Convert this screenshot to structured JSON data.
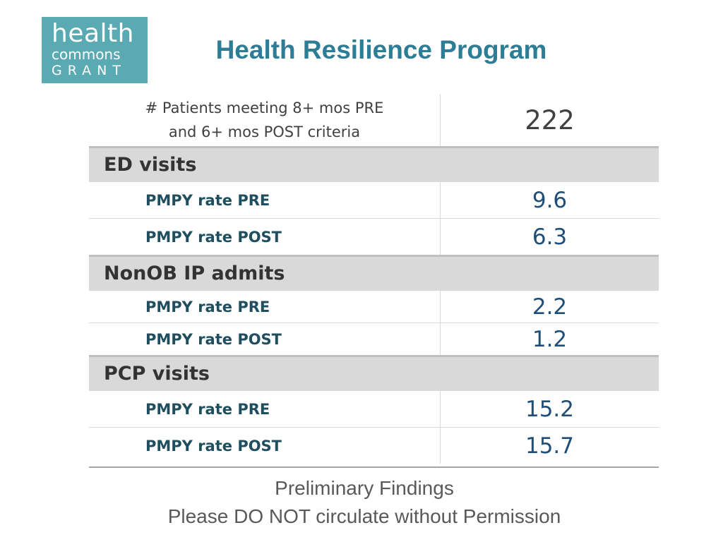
{
  "logo": {
    "line1": "health",
    "line2": "commons",
    "line3": "GRANT"
  },
  "title": "Health Resilience Program",
  "summary": {
    "label_line1": "# Patients meeting 8+ mos PRE",
    "label_line2": "and 6+ mos POST criteria",
    "value": "222"
  },
  "sections": [
    {
      "name": "ED visits",
      "rows": [
        {
          "label": "PMPY rate PRE",
          "value": "9.6"
        },
        {
          "label": "PMPY rate POST",
          "value": "6.3"
        }
      ]
    },
    {
      "name": "NonOB IP admits",
      "rows": [
        {
          "label": "PMPY rate PRE",
          "value": "2.2"
        },
        {
          "label": "PMPY rate POST",
          "value": "1.2"
        }
      ]
    },
    {
      "name": "PCP visits",
      "rows": [
        {
          "label": "PMPY rate PRE",
          "value": "15.2"
        },
        {
          "label": "PMPY rate POST",
          "value": "15.7"
        }
      ]
    }
  ],
  "footer": {
    "line1": "Preliminary Findings",
    "line2": "Please DO NOT circulate without Permission"
  },
  "colors": {
    "logo_background": "#5aaab4",
    "title": "#2e7d96",
    "section_band": "#d9d9d9",
    "metric_label": "#1f4e5f",
    "metric_value": "#1f4e79"
  }
}
